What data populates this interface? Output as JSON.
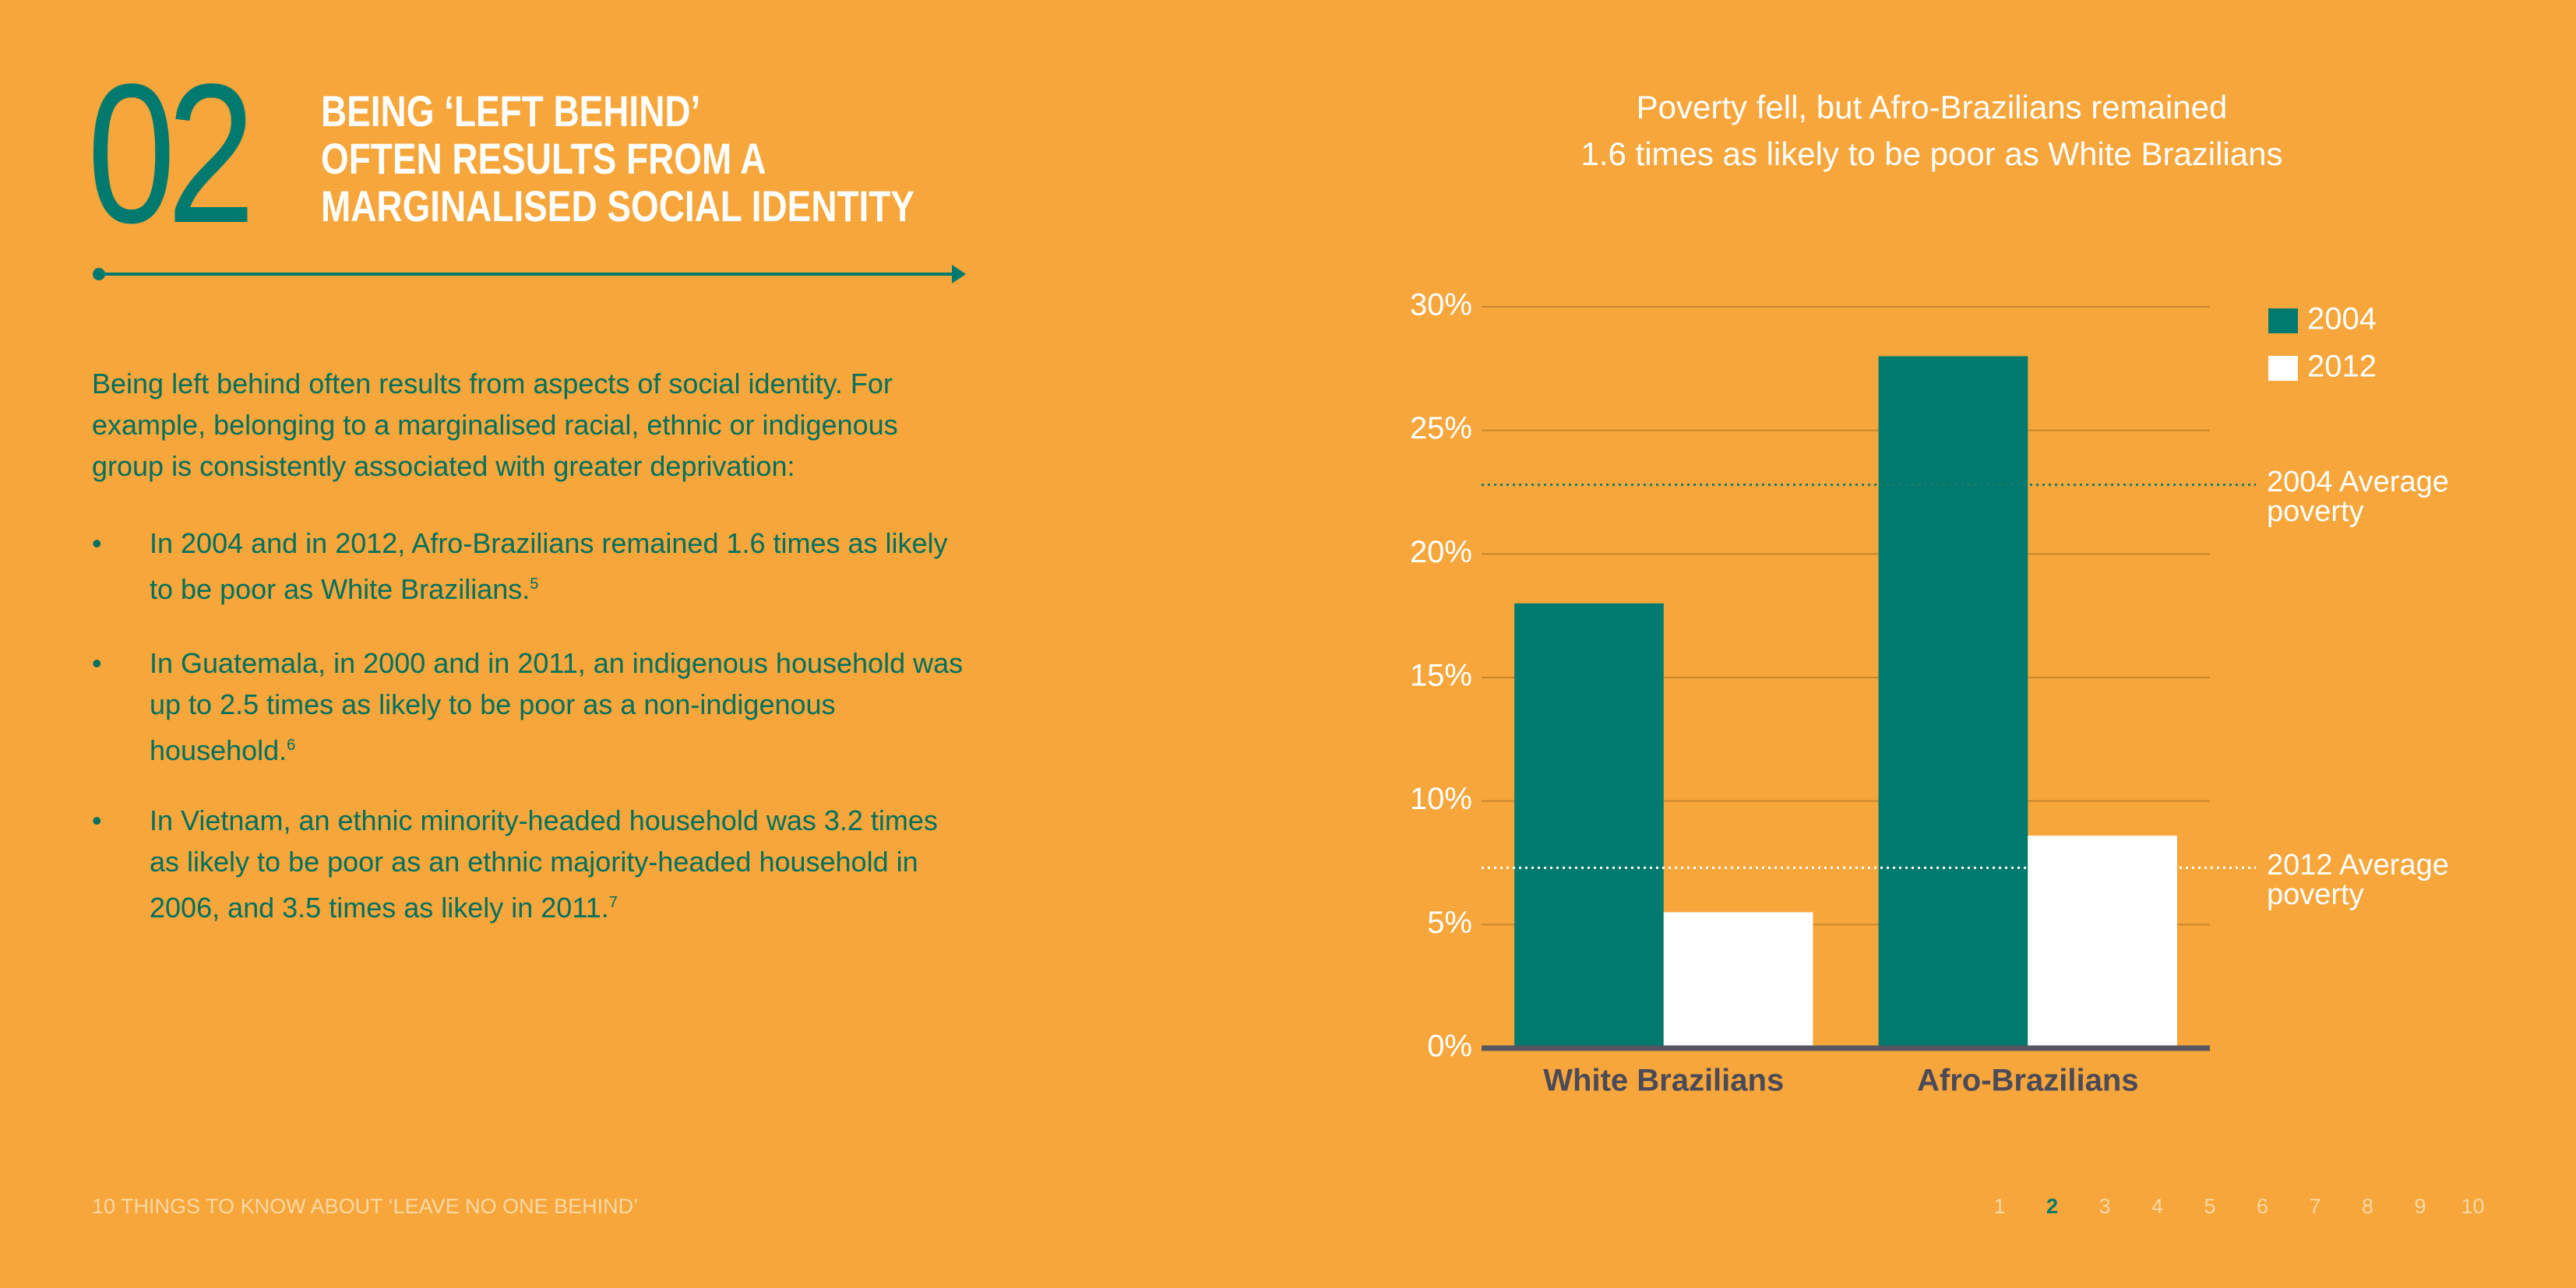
{
  "header": {
    "number": "02",
    "title": "BEING ‘LEFT BEHIND’\nOFTEN RESULTS FROM A\nMARGINALISED SOCIAL IDENTITY"
  },
  "body": {
    "intro": "Being left behind often results from aspects of social identity. For example, belonging to a marginalised racial, ethnic or indigenous group is consistently associated with greater deprivation:",
    "bullets": [
      {
        "text": "In 2004 and in 2012, Afro-Brazilians remained 1.6 times as likely to be poor as White Brazilians.",
        "footnote": "5"
      },
      {
        "text": "In Guatemala, in 2000 and in 2011, an indigenous household was up to 2.5 times as likely to be poor as a non-indigenous household.",
        "footnote": "6"
      },
      {
        "text": "In Vietnam, an ethnic minority-headed household was 3.2 times as likely to be poor as an ethnic majority-headed household in 2006, and 3.5 times as likely in 2011.",
        "footnote": "7"
      }
    ]
  },
  "chart_data": {
    "type": "bar",
    "title": "Poverty fell, but Afro-Brazilians remained\n1.6 times as likely to be poor as White Brazilians",
    "categories": [
      "White Brazilians",
      "Afro-Brazilians"
    ],
    "series": [
      {
        "name": "2004",
        "color": "#007a6e",
        "values": [
          18,
          28
        ]
      },
      {
        "name": "2012",
        "color": "#ffffff",
        "values": [
          5.5,
          8.6
        ]
      }
    ],
    "ylim": [
      0,
      30
    ],
    "yticks": [
      {
        "value": 0,
        "label": "0%"
      },
      {
        "value": 5,
        "label": "5%"
      },
      {
        "value": 10,
        "label": "10%"
      },
      {
        "value": 15,
        "label": "15%"
      },
      {
        "value": 20,
        "label": "20%"
      },
      {
        "value": 25,
        "label": "25%"
      },
      {
        "value": 30,
        "label": "30%"
      }
    ],
    "grid": true,
    "legend": "top-right",
    "reference_lines": [
      {
        "value": 22.8,
        "label": "2004 Average\npoverty",
        "color": "#1f7a68"
      },
      {
        "value": 7.3,
        "label": "2012 Average\npoverty",
        "color": "#ffffff"
      }
    ]
  },
  "footer": {
    "text": "10 THINGS TO KNOW ABOUT ‘LEAVE NO ONE BEHIND’",
    "pages": [
      "1",
      "2",
      "3",
      "4",
      "5",
      "6",
      "7",
      "8",
      "9",
      "10"
    ],
    "active_index": 1
  }
}
